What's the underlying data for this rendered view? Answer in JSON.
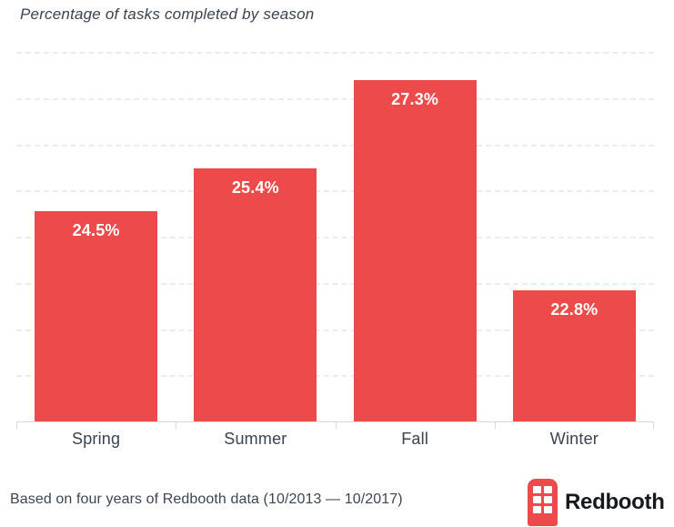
{
  "chart": {
    "title": "Percentage of tasks completed by season"
  },
  "chart_data": {
    "type": "bar",
    "title": "Percentage of tasks completed by season",
    "categories": [
      "Spring",
      "Summer",
      "Fall",
      "Winter"
    ],
    "values": [
      24.5,
      25.4,
      27.3,
      22.8
    ],
    "value_labels": [
      "24.5%",
      "25.4%",
      "27.3%",
      "22.8%"
    ],
    "xlabel": "",
    "ylabel": "",
    "ylim": [
      20,
      28
    ],
    "y_axis_labels": "none",
    "gridlines": "horizontal-dashed",
    "gridline_count": 8,
    "legend": "none",
    "bar_color": "#ed4a4b",
    "value_label_color": "#ffffff"
  },
  "footer": {
    "caption": "Based on four years of Redbooth data (10/2013 — 10/2017)",
    "brand": "Redbooth",
    "logo_icon": "redbooth-booth-icon",
    "logo_color": "#ed4a4b",
    "brand_text_color": "#17191d"
  },
  "colors": {
    "bar": "#ed4a4b",
    "text": "#3a444e",
    "gridline": "#ededef",
    "axis": "#d6d9db",
    "background": "#ffffff"
  }
}
